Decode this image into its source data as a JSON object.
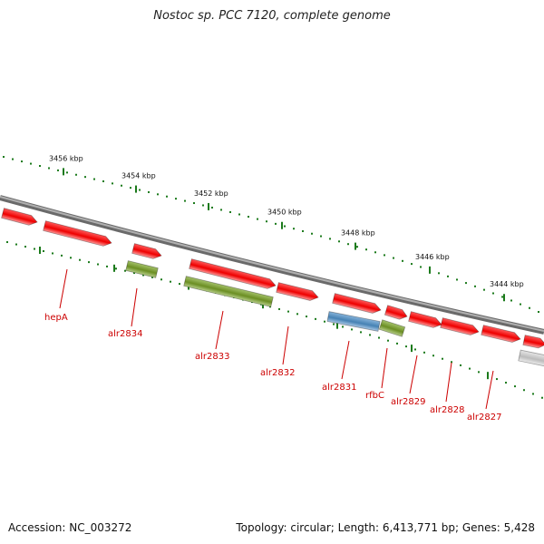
{
  "header": {
    "title": "Nostoc sp. PCC 7120, complete genome"
  },
  "colors": {
    "backbone": "#888888",
    "ruler": "#1b7a1b",
    "gene_red": "#ee0000",
    "gene_green": "#6b8e23",
    "gene_blue": "#4682b4",
    "gene_grey": "#bbbbbb",
    "label": "#cc0000"
  },
  "ruler_outer": {
    "labels": [
      "3456 kbp",
      "3454 kbp",
      "3452 kbp",
      "3450 kbp",
      "3448 kbp",
      "3446 kbp",
      "3444 kbp"
    ]
  },
  "genes": [
    {
      "label": "hepA",
      "color": "gene_red",
      "strand": "+"
    },
    {
      "label": "alr2834",
      "color": "gene_green",
      "strand": "+"
    },
    {
      "label": "alr2833",
      "color": "gene_green",
      "strand": "+"
    },
    {
      "label": "alr2832",
      "color": "gene_red",
      "strand": "+"
    },
    {
      "label": "alr2831",
      "color": "gene_blue",
      "strand": "+"
    },
    {
      "label": "rfbC",
      "color": "gene_green",
      "strand": "+"
    },
    {
      "label": "alr2829",
      "color": "gene_red",
      "strand": "+"
    },
    {
      "label": "alr2828",
      "color": "gene_red",
      "strand": "+"
    },
    {
      "label": "alr2827",
      "color": "gene_red",
      "strand": "+"
    }
  ],
  "footer": {
    "accession": "Accession: NC_003272",
    "stats": "Topology: circular; Length: 6,413,771 bp; Genes: 5,428"
  }
}
